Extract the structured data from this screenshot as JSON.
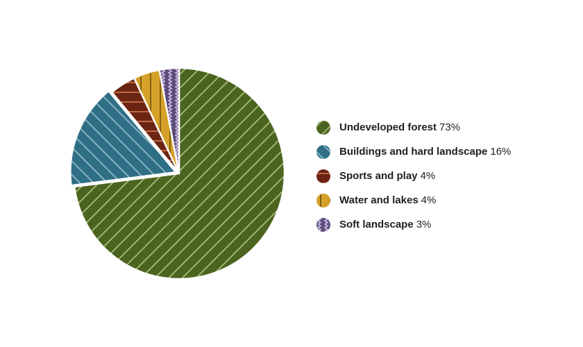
{
  "chart_data": {
    "type": "pie",
    "title": "",
    "slices": [
      {
        "label": "Undeveloped forest",
        "value": 73,
        "value_label": "73%",
        "color": "#4b6420",
        "pattern": "diagonal-forward-lines",
        "line_color": "#a7bd7a"
      },
      {
        "label": "Buildings and hard landscape",
        "value": 16,
        "value_label": "16%",
        "color": "#2f6f86",
        "pattern": "diagonal-back-lines",
        "line_color": "#8fb7c8"
      },
      {
        "label": "Sports and play",
        "value": 4,
        "value_label": "4%",
        "color": "#6b2512",
        "pattern": "horizontal-lines",
        "line_color": "#c9724a"
      },
      {
        "label": "Water and lakes",
        "value": 4,
        "value_label": "4%",
        "color": "#d6a129",
        "pattern": "vertical-lines",
        "line_color": "#7a5a0f"
      },
      {
        "label": "Soft landscape",
        "value": 3,
        "value_label": "3%",
        "color": "#5b4a7a",
        "pattern": "zigzag-vertical",
        "line_color": "#c7b9e0"
      }
    ],
    "legend_position": "right"
  }
}
